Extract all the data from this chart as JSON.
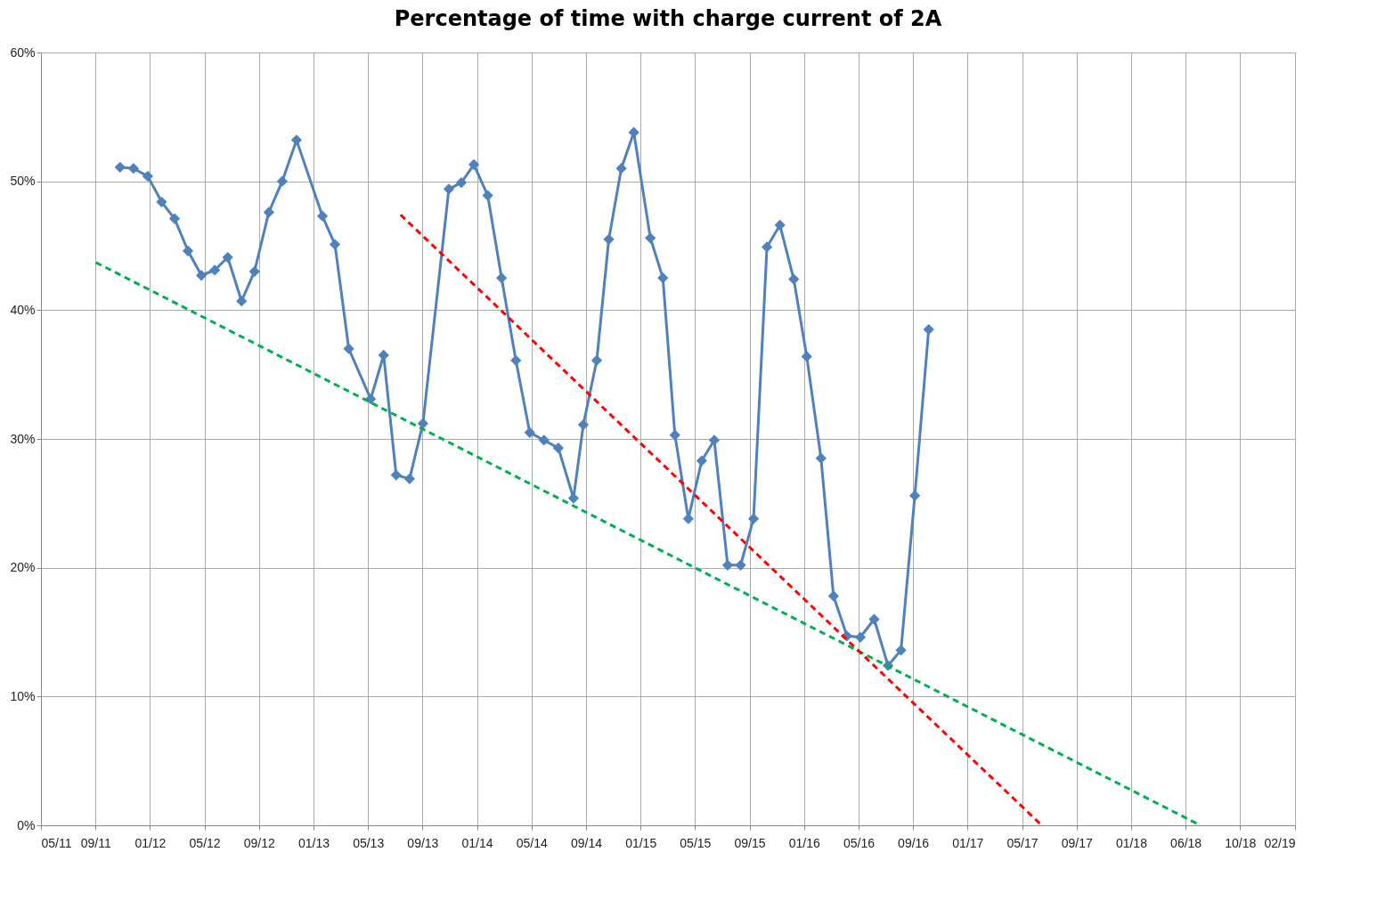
{
  "chart_data": {
    "type": "line",
    "title": "Percentage of time with charge current of 2A",
    "xlim": [
      "2011-05-27",
      "2019-02-01"
    ],
    "xticks": [
      {
        "value": "2011-05-27",
        "label": "05/11"
      },
      {
        "value": "2011-09-26",
        "label": "09/11"
      },
      {
        "value": "2012-01-26",
        "label": "01/12"
      },
      {
        "value": "2012-05-27",
        "label": "05/12"
      },
      {
        "value": "2012-09-26",
        "label": "09/12"
      },
      {
        "value": "2013-01-26",
        "label": "01/13"
      },
      {
        "value": "2013-05-28",
        "label": "05/13"
      },
      {
        "value": "2013-09-27",
        "label": "09/13"
      },
      {
        "value": "2014-01-27",
        "label": "01/14"
      },
      {
        "value": "2014-05-29",
        "label": "05/14"
      },
      {
        "value": "2014-09-28",
        "label": "09/14"
      },
      {
        "value": "2015-01-28",
        "label": "01/15"
      },
      {
        "value": "2015-05-30",
        "label": "05/15"
      },
      {
        "value": "2015-09-29",
        "label": "09/15"
      },
      {
        "value": "2016-01-29",
        "label": "01/16"
      },
      {
        "value": "2016-05-30",
        "label": "05/16"
      },
      {
        "value": "2016-09-29",
        "label": "09/16"
      },
      {
        "value": "2017-01-29",
        "label": "01/17"
      },
      {
        "value": "2017-05-31",
        "label": "05/17"
      },
      {
        "value": "2017-09-30",
        "label": "09/17"
      },
      {
        "value": "2018-01-30",
        "label": "01/18"
      },
      {
        "value": "2018-06-01",
        "label": "06/18"
      },
      {
        "value": "2018-10-01",
        "label": "10/18"
      },
      {
        "value": "2019-02-01",
        "label": "02/19"
      }
    ],
    "ylim": [
      0,
      60
    ],
    "yticks": [
      {
        "value": 0,
        "label": "0%"
      },
      {
        "value": 10,
        "label": "10%"
      },
      {
        "value": 20,
        "label": "20%"
      },
      {
        "value": 30,
        "label": "30%"
      },
      {
        "value": 40,
        "label": "40%"
      },
      {
        "value": 50,
        "label": "50%"
      },
      {
        "value": 60,
        "label": "60%"
      }
    ],
    "grid": true,
    "marker": "diamond",
    "series": [
      {
        "color": "#4f81bd",
        "x": [
          "2011-11-20",
          "2011-12-20",
          "2012-01-21",
          "2012-02-21",
          "2012-03-21",
          "2012-04-20",
          "2012-05-20",
          "2012-06-19",
          "2012-07-18",
          "2012-08-18",
          "2012-09-16",
          "2012-10-18",
          "2012-11-17",
          "2012-12-19",
          "2013-02-15",
          "2013-03-15",
          "2013-04-15",
          "2013-06-03",
          "2013-07-02",
          "2013-07-30",
          "2013-08-29",
          "2013-09-28",
          "2013-11-25",
          "2013-12-23",
          "2014-01-20",
          "2014-02-20",
          "2014-03-23",
          "2014-04-24",
          "2014-05-25",
          "2014-06-26",
          "2014-07-28",
          "2014-08-31",
          "2014-09-22",
          "2014-10-22",
          "2014-11-18",
          "2014-12-16",
          "2015-01-13",
          "2015-02-19",
          "2015-03-19",
          "2015-04-15",
          "2015-05-15",
          "2015-06-14",
          "2015-07-12",
          "2015-08-11",
          "2015-09-09",
          "2015-10-08",
          "2015-11-07",
          "2015-12-06",
          "2016-01-06",
          "2016-02-04",
          "2016-03-07",
          "2016-04-04",
          "2016-05-04",
          "2016-06-03",
          "2016-07-04",
          "2016-08-04",
          "2016-09-02",
          "2016-10-03",
          "2016-11-03"
        ],
        "values": [
          51.1,
          51.0,
          50.4,
          48.4,
          47.1,
          44.6,
          42.7,
          43.1,
          44.1,
          40.7,
          43.0,
          47.6,
          50.0,
          53.2,
          47.3,
          45.1,
          37.0,
          33.1,
          36.5,
          27.2,
          26.9,
          31.2,
          49.4,
          49.9,
          51.3,
          48.9,
          42.5,
          36.1,
          30.5,
          29.9,
          29.3,
          25.4,
          31.1,
          36.1,
          45.5,
          51.0,
          53.8,
          45.6,
          42.5,
          30.3,
          23.8,
          28.3,
          29.9,
          20.2,
          20.2,
          23.8,
          44.9,
          46.6,
          42.4,
          36.4,
          28.5,
          17.8,
          14.7,
          14.6,
          16.0,
          12.4,
          13.6,
          25.6,
          38.5
        ]
      },
      {
        "color": "#00b050",
        "x": [
          "2011-09-27",
          "2018-07-04"
        ],
        "values": [
          43.7,
          0
        ],
        "marker": "none",
        "line_style": "dashed"
      },
      {
        "color": "#ff0000",
        "x": [
          "2013-08-09",
          "2017-07-14"
        ],
        "values": [
          47.4,
          0
        ],
        "marker": "none",
        "line_style": "dashed"
      }
    ]
  }
}
